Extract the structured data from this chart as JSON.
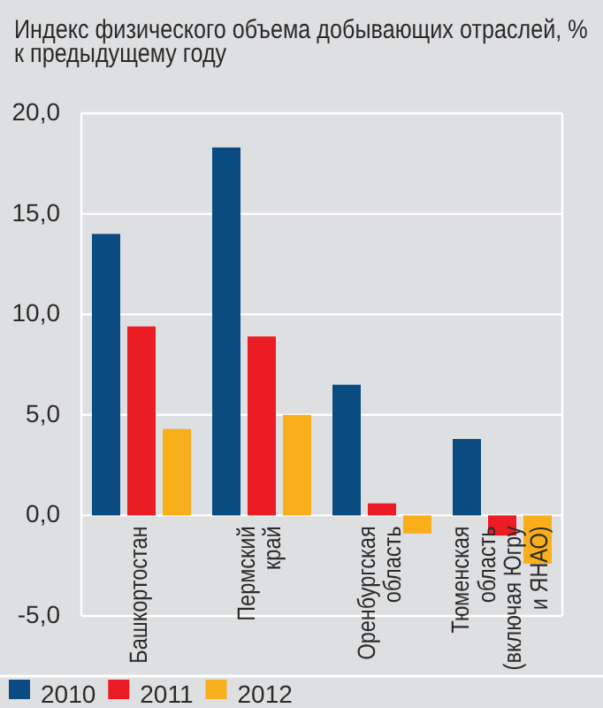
{
  "chart_data": {
    "type": "bar",
    "title": "Индекс физического объема добывающих отраслей, % к предыдущему году",
    "categories": [
      "Башкортостан",
      "Пермский\nкрай",
      "Оренбургская\nобласть",
      "Тюменская\nобласть\n(включая Югру\nи ЯНАО)"
    ],
    "series": [
      {
        "name": "2010",
        "color": "#0a4c82",
        "values": [
          14.0,
          18.3,
          6.5,
          3.8
        ]
      },
      {
        "name": "2011",
        "color": "#ec1c24",
        "values": [
          9.4,
          8.9,
          0.6,
          -1.0
        ]
      },
      {
        "name": "2012",
        "color": "#f9ae1b",
        "values": [
          4.3,
          5.0,
          -0.9,
          -2.4
        ]
      }
    ],
    "ylim": [
      -5,
      20
    ],
    "yticks": [
      {
        "value": -5,
        "label": "-5,0"
      },
      {
        "value": 0,
        "label": "0,0"
      },
      {
        "value": 5,
        "label": "5,0"
      },
      {
        "value": 10,
        "label": "10,0"
      },
      {
        "value": 15,
        "label": "15,0"
      },
      {
        "value": 20,
        "label": "20,0"
      }
    ],
    "grid": "y",
    "legend": "bottom"
  }
}
